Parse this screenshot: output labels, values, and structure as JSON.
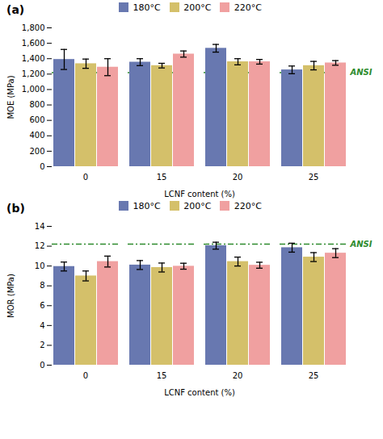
{
  "chart_data": [
    {
      "type": "bar",
      "title": "(a)",
      "x_label": "LCNF content (%)",
      "y_label": "MOE (MPa)",
      "categories": [
        "0",
        "15",
        "20",
        "25"
      ],
      "series": [
        {
          "name": "180°C",
          "color": "#6878b0",
          "values": [
            1390,
            1355,
            1535,
            1255
          ],
          "errors": [
            130,
            45,
            50,
            50
          ]
        },
        {
          "name": "200°C",
          "color": "#d4c06a",
          "values": [
            1335,
            1310,
            1360,
            1310
          ],
          "errors": [
            60,
            30,
            40,
            55
          ]
        },
        {
          "name": "220°C",
          "color": "#f0a0a0",
          "values": [
            1290,
            1460,
            1360,
            1345
          ],
          "errors": [
            110,
            40,
            30,
            30
          ]
        }
      ],
      "ylim": [
        0,
        1800
      ],
      "yticks": [
        0,
        200,
        400,
        600,
        800,
        1000,
        1200,
        1400,
        1600,
        1800
      ],
      "annotations": [
        {
          "text": "ANSI",
          "y": 1220,
          "color": "#2e8b2e",
          "line_style": "dashdot"
        }
      ],
      "legend": "top",
      "grid": false
    },
    {
      "type": "bar",
      "title": "(b)",
      "x_label": "LCNF content (%)",
      "y_label": "MOR (MPa)",
      "categories": [
        "0",
        "15",
        "20",
        "25"
      ],
      "series": [
        {
          "name": "180°C",
          "color": "#6878b0",
          "values": [
            9.95,
            10.1,
            12.05,
            11.85
          ],
          "errors": [
            0.45,
            0.45,
            0.35,
            0.45
          ]
        },
        {
          "name": "200°C",
          "color": "#d4c06a",
          "values": [
            9.0,
            9.85,
            10.45,
            10.9
          ],
          "errors": [
            0.5,
            0.45,
            0.45,
            0.45
          ]
        },
        {
          "name": "220°C",
          "color": "#f0a0a0",
          "values": [
            10.45,
            9.98,
            10.08,
            11.3
          ],
          "errors": [
            0.55,
            0.3,
            0.3,
            0.45
          ]
        }
      ],
      "ylim": [
        0,
        14
      ],
      "yticks": [
        0,
        2,
        4,
        6,
        8,
        10,
        12,
        14
      ],
      "annotations": [
        {
          "text": "ANSI",
          "y": 12.2,
          "color": "#2e8b2e",
          "line_style": "dashdot"
        }
      ],
      "legend": "top",
      "grid": false
    }
  ]
}
